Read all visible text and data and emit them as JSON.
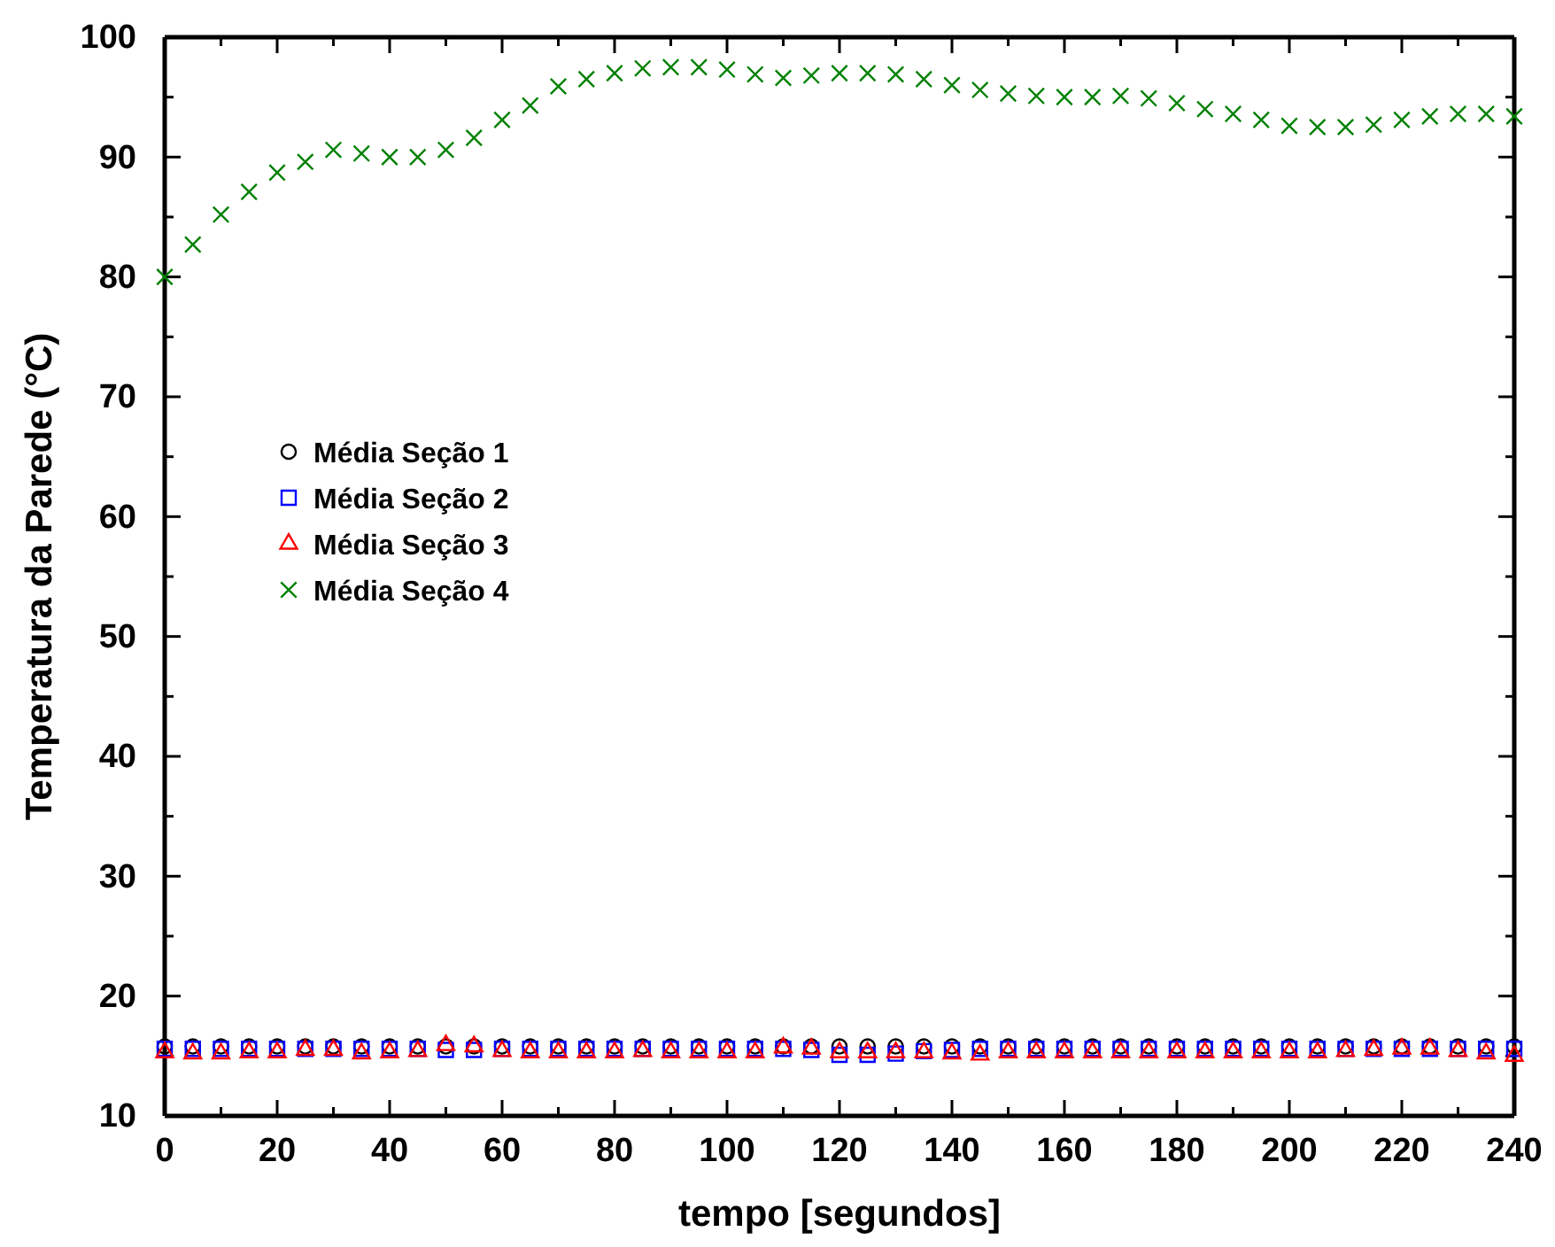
{
  "chart_data": {
    "type": "scatter",
    "xlabel": "tempo  [segundos]",
    "ylabel": "Temperatura da Parede (°C)",
    "x": [
      0,
      5,
      10,
      15,
      20,
      25,
      30,
      35,
      40,
      45,
      50,
      55,
      60,
      65,
      70,
      75,
      80,
      85,
      90,
      95,
      100,
      105,
      110,
      115,
      120,
      125,
      130,
      135,
      140,
      145,
      150,
      155,
      160,
      165,
      170,
      175,
      180,
      185,
      190,
      195,
      200,
      205,
      210,
      215,
      220,
      225,
      230,
      235,
      240
    ],
    "xlim": [
      0,
      240
    ],
    "ylim": [
      10,
      100
    ],
    "xticks": [
      0,
      {
        "value": 10,
        "label": null
      },
      20,
      {
        "value": 30,
        "label": null
      },
      40,
      {
        "value": 50,
        "label": null
      },
      60,
      {
        "value": 70,
        "label": null
      },
      80,
      {
        "value": 90,
        "label": null
      },
      100,
      {
        "value": 110,
        "label": null
      },
      120,
      {
        "value": 130,
        "label": null
      },
      140,
      {
        "value": 150,
        "label": null
      },
      160,
      {
        "value": 170,
        "label": null
      },
      180,
      {
        "value": 190,
        "label": null
      },
      200,
      {
        "value": 210,
        "label": null
      },
      220,
      {
        "value": 230,
        "label": null
      },
      240
    ],
    "yticks": [
      10,
      {
        "value": 15,
        "label": null
      },
      20,
      {
        "value": 25,
        "label": null
      },
      30,
      {
        "value": 35,
        "label": null
      },
      40,
      {
        "value": 45,
        "label": null
      },
      50,
      {
        "value": 55,
        "label": null
      },
      60,
      {
        "value": 65,
        "label": null
      },
      70,
      {
        "value": 75,
        "label": null
      },
      80,
      {
        "value": 85,
        "label": null
      },
      90,
      {
        "value": 95,
        "label": null
      },
      100
    ],
    "grid": false,
    "legend": "left",
    "series": [
      {
        "name": "Média Seção 1",
        "color": "#000000",
        "marker": "circle",
        "values": [
          15.8,
          15.8,
          15.8,
          15.8,
          15.8,
          15.8,
          15.8,
          15.8,
          15.8,
          15.8,
          15.8,
          15.8,
          15.8,
          15.8,
          15.8,
          15.8,
          15.8,
          15.8,
          15.8,
          15.8,
          15.8,
          15.8,
          15.8,
          15.8,
          15.8,
          15.8,
          15.8,
          15.8,
          15.8,
          15.8,
          15.8,
          15.8,
          15.8,
          15.8,
          15.8,
          15.8,
          15.8,
          15.8,
          15.8,
          15.8,
          15.8,
          15.8,
          15.8,
          15.8,
          15.8,
          15.8,
          15.8,
          15.8,
          15.8
        ]
      },
      {
        "name": "Média Seção 2",
        "color": "#0000ff",
        "marker": "square",
        "values": [
          15.6,
          15.6,
          15.6,
          15.6,
          15.6,
          15.6,
          15.6,
          15.6,
          15.6,
          15.6,
          15.5,
          15.5,
          15.6,
          15.6,
          15.6,
          15.6,
          15.6,
          15.6,
          15.6,
          15.6,
          15.6,
          15.6,
          15.6,
          15.5,
          15.1,
          15.1,
          15.2,
          15.4,
          15.5,
          15.6,
          15.6,
          15.6,
          15.6,
          15.6,
          15.6,
          15.6,
          15.6,
          15.6,
          15.6,
          15.6,
          15.6,
          15.6,
          15.6,
          15.6,
          15.6,
          15.6,
          15.6,
          15.6,
          15.6
        ]
      },
      {
        "name": "Média Seção 3",
        "color": "#ff0000",
        "marker": "triangle",
        "values": [
          15.3,
          15.2,
          15.2,
          15.3,
          15.3,
          15.5,
          15.5,
          15.2,
          15.3,
          15.4,
          15.9,
          15.8,
          15.4,
          15.3,
          15.3,
          15.3,
          15.3,
          15.4,
          15.3,
          15.3,
          15.3,
          15.3,
          15.7,
          15.6,
          15.3,
          15.3,
          15.3,
          15.3,
          15.2,
          15.1,
          15.3,
          15.3,
          15.3,
          15.3,
          15.3,
          15.3,
          15.3,
          15.3,
          15.3,
          15.3,
          15.3,
          15.3,
          15.4,
          15.5,
          15.6,
          15.6,
          15.4,
          15.2,
          15.0
        ]
      },
      {
        "name": "Média Seção 4",
        "color": "#008000",
        "marker": "cross",
        "values": [
          80,
          82.7,
          85.2,
          87.1,
          88.7,
          89.6,
          90.6,
          90.3,
          90,
          90,
          90.6,
          91.6,
          93.1,
          94.3,
          95.9,
          96.5,
          97,
          97.4,
          97.5,
          97.5,
          97.3,
          96.9,
          96.6,
          96.8,
          97,
          97,
          96.9,
          96.5,
          96,
          95.6,
          95.3,
          95.1,
          95,
          95,
          95.1,
          94.9,
          94.5,
          94,
          93.6,
          93.1,
          92.6,
          92.5,
          92.5,
          92.7,
          93.1,
          93.4,
          93.6,
          93.6,
          93.4
        ]
      }
    ]
  }
}
